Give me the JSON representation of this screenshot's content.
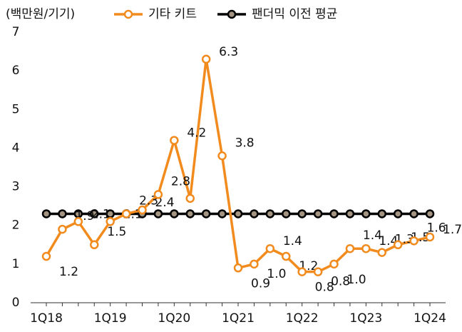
{
  "chart_data": {
    "type": "line",
    "y_label": "(백만원/기기)",
    "categories": [
      "1Q18",
      null,
      null,
      null,
      "1Q19",
      null,
      null,
      null,
      "1Q20",
      null,
      null,
      null,
      "1Q21",
      null,
      null,
      null,
      "1Q22",
      null,
      null,
      null,
      "1Q23",
      null,
      null,
      null,
      "1Q24"
    ],
    "series": [
      {
        "name": "기타 키트",
        "color": "#f28b1e",
        "values": [
          1.2,
          1.9,
          2.1,
          1.5,
          2.1,
          2.3,
          2.4,
          2.8,
          4.2,
          2.7,
          6.3,
          3.8,
          0.9,
          1.0,
          1.4,
          1.2,
          0.8,
          0.8,
          1.0,
          1.4,
          1.4,
          1.3,
          1.5,
          1.6,
          1.7
        ],
        "value_labels": [
          "1.2",
          "1.9",
          "2.1",
          "1.5",
          "2.1",
          "2.3",
          "2.4",
          "2.8",
          "4.2",
          null,
          "6.3",
          "3.8",
          "0.9",
          "1.0",
          "1.4",
          "1.2",
          "0.8",
          "0.8",
          "1.0",
          "1.4",
          "1.4",
          "1.3",
          "1.5",
          "1.6",
          "1.7"
        ]
      },
      {
        "name": "팬더믹 이전 평균",
        "color": "#000000",
        "marker_fill": "#a39482",
        "values": [
          2.3,
          2.3,
          2.3,
          2.3,
          2.3,
          2.3,
          2.3,
          2.3,
          2.3,
          2.3,
          2.3,
          2.3,
          2.3,
          2.3,
          2.3,
          2.3,
          2.3,
          2.3,
          2.3,
          2.3,
          2.3,
          2.3,
          2.3,
          2.3,
          2.3
        ]
      }
    ],
    "ylim": [
      0,
      7
    ],
    "yticks": [
      0,
      1,
      2,
      3,
      4,
      5,
      6,
      7
    ],
    "grid": false
  }
}
